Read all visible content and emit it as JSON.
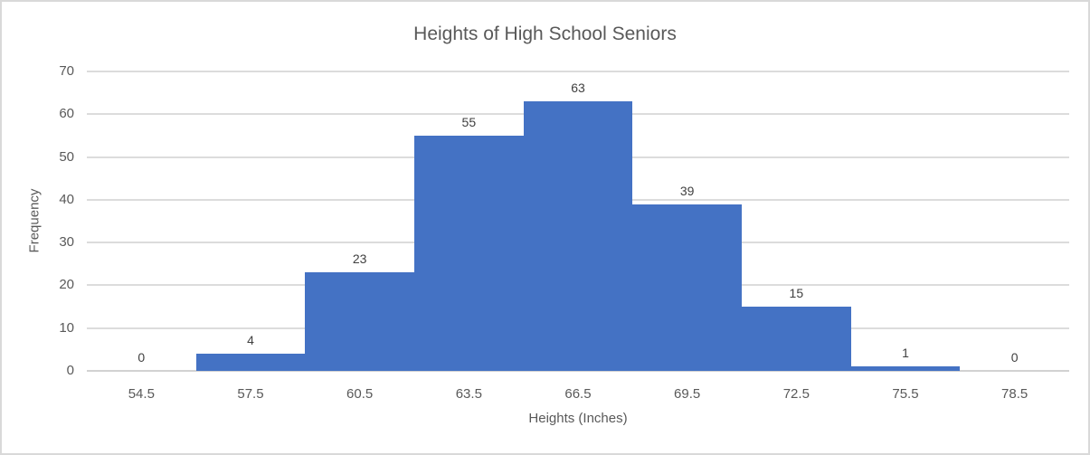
{
  "chart_data": {
    "type": "bar",
    "subtype": "histogram",
    "title": "Heights of High School Seniors",
    "xlabel": "Heights (Inches)",
    "ylabel": "Frequency",
    "categories": [
      "54.5",
      "57.5",
      "60.5",
      "63.5",
      "66.5",
      "69.5",
      "72.5",
      "75.5",
      "78.5"
    ],
    "values": [
      0,
      4,
      23,
      55,
      63,
      39,
      15,
      1,
      0
    ],
    "data_labels": [
      "0",
      "4",
      "23",
      "55",
      "63",
      "39",
      "15",
      "1",
      "0"
    ],
    "yticks": [
      0,
      10,
      20,
      30,
      40,
      50,
      60,
      70
    ],
    "ylim": [
      0,
      70
    ],
    "gap_width": 0,
    "grid": true,
    "legend_position": "none",
    "colors": {
      "bar": "#4472c4",
      "gridline": "#dcdcdc",
      "axis_line": "#d2d2d2",
      "title_text": "#595959",
      "tick_text": "#595959",
      "data_label_text": "#404040",
      "chart_border": "#d9d9d9",
      "background": "#ffffff"
    }
  }
}
